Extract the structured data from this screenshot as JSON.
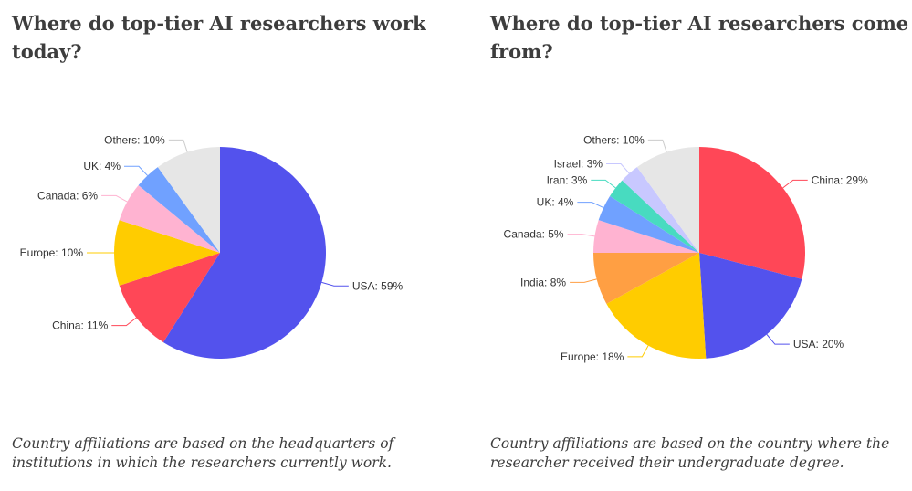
{
  "chart_data": [
    {
      "type": "pie",
      "title": "Where do top-tier AI researchers work today?",
      "caption": "Country affiliations are based on the headquarters of institutions in which the researchers currently work.",
      "slices": [
        {
          "label": "USA: 59%",
          "value": 59,
          "color": "#5352ed"
        },
        {
          "label": "China: 11%",
          "value": 11,
          "color": "#ff4757"
        },
        {
          "label": "Europe: 10%",
          "value": 10,
          "color": "#ffcc00"
        },
        {
          "label": "Canada: 6%",
          "value": 6,
          "color": "#ffb3d1"
        },
        {
          "label": "UK: 4%",
          "value": 4,
          "color": "#70a1ff"
        },
        {
          "label": "Others: 10%",
          "value": 10,
          "color": "#e6e6e6"
        }
      ]
    },
    {
      "type": "pie",
      "title": "Where do top-tier AI researchers come from?",
      "caption": "Country affiliations are based on the country where the researcher received their undergraduate degree.",
      "slices": [
        {
          "label": "China: 29%",
          "value": 29,
          "color": "#ff4757"
        },
        {
          "label": "USA: 20%",
          "value": 20,
          "color": "#5352ed"
        },
        {
          "label": "Europe: 18%",
          "value": 18,
          "color": "#ffcc00"
        },
        {
          "label": "India: 8%",
          "value": 8,
          "color": "#ff9f43"
        },
        {
          "label": "Canada: 5%",
          "value": 5,
          "color": "#ffb3d1"
        },
        {
          "label": "UK: 4%",
          "value": 4,
          "color": "#70a1ff"
        },
        {
          "label": "Iran: 3%",
          "value": 3,
          "color": "#48dbc0"
        },
        {
          "label": "Israel: 3%",
          "value": 3,
          "color": "#c8c8ff"
        },
        {
          "label": "Others: 10%",
          "value": 10,
          "color": "#e6e6e6"
        }
      ]
    }
  ]
}
